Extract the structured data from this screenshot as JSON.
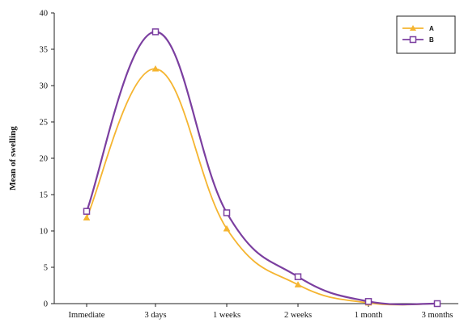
{
  "chart_data": {
    "type": "line",
    "title": "",
    "xlabel": "",
    "ylabel": "Mean of swelling",
    "categories": [
      "Immediate",
      "3 days",
      "1 weeks",
      "2 weeks",
      "1 month",
      "3 months"
    ],
    "ylim": [
      0,
      40
    ],
    "yticks": [
      0,
      5,
      10,
      15,
      20,
      25,
      30,
      35,
      40
    ],
    "grid": false,
    "legend_position": "top-right",
    "series": [
      {
        "name": "A",
        "color": "#F5B531",
        "marker": "triangle",
        "values": [
          11.8,
          32.3,
          10.3,
          2.6,
          0.1,
          0.0
        ]
      },
      {
        "name": "B",
        "color": "#7B3FA0",
        "marker": "square",
        "values": [
          12.7,
          37.4,
          12.5,
          3.7,
          0.3,
          0.0
        ]
      }
    ]
  }
}
